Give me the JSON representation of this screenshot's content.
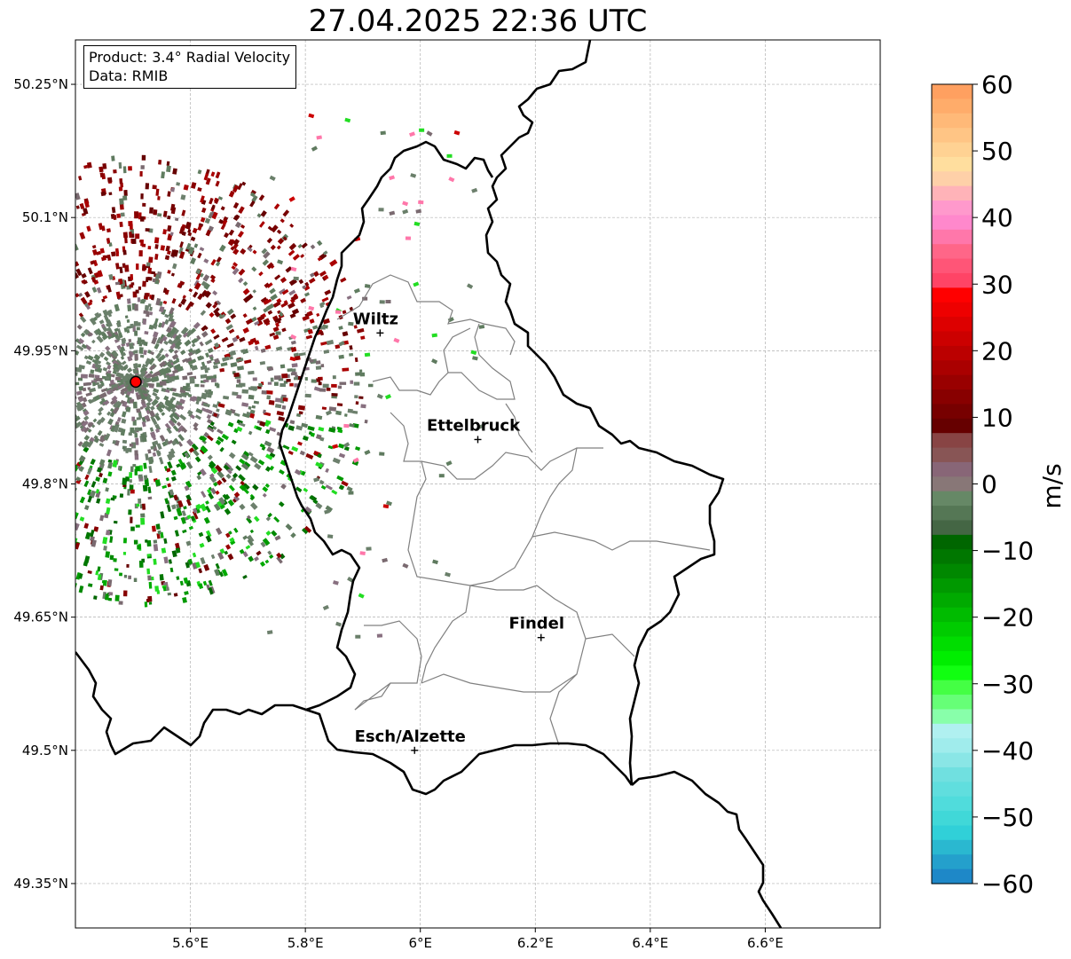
{
  "title": "27.04.2025 22:36 UTC",
  "info_box": {
    "product": "Product: 3.4° Radial Velocity",
    "data_source": "Data: RMIB"
  },
  "axes": {
    "lon_ticks": [
      "5.6°E",
      "5.8°E",
      "6°E",
      "6.2°E",
      "6.4°E",
      "6.6°E"
    ],
    "lat_ticks": [
      "50.25°N",
      "50.1°N",
      "49.95°N",
      "49.8°N",
      "49.65°N",
      "49.5°N",
      "49.35°N"
    ],
    "lon_range": [
      5.4,
      6.8
    ],
    "lat_range": [
      49.3,
      50.3
    ],
    "grid": true
  },
  "cities": [
    {
      "name": "Wiltz",
      "lon": 5.93,
      "lat": 49.97
    },
    {
      "name": "Ettelbruck",
      "lon": 6.1,
      "lat": 49.85
    },
    {
      "name": "Findel",
      "lon": 6.21,
      "lat": 49.627
    },
    {
      "name": "Esch/Alzette",
      "lon": 5.99,
      "lat": 49.5
    }
  ],
  "radar_site": {
    "lon": 5.505,
    "lat": 49.915,
    "color": "#ff0000"
  },
  "colorbar": {
    "label": "m/s",
    "min": -60,
    "max": 60,
    "tick_labels": [
      "60",
      "50",
      "40",
      "30",
      "20",
      "10",
      "0",
      "−10",
      "−20",
      "−30",
      "−40",
      "−50",
      "−60"
    ],
    "tick_values": [
      60,
      50,
      40,
      30,
      20,
      10,
      0,
      -10,
      -20,
      -30,
      -40,
      -50,
      -60
    ],
    "colors": [
      "#ffa060",
      "#ffac6a",
      "#ffb978",
      "#ffc585",
      "#ffd293",
      "#ffde9e",
      "#fed0a8",
      "#ffb3b8",
      "#ff99cc",
      "#ff88cc",
      "#ff77aa",
      "#ff6688",
      "#ff5577",
      "#ff4466",
      "#ff0000",
      "#ee0000",
      "#dd0000",
      "#cc0000",
      "#bb0000",
      "#aa0000",
      "#990000",
      "#880000",
      "#770000",
      "#660000",
      "#884444",
      "#885555",
      "#886677",
      "#887777",
      "#668866",
      "#557755",
      "#446644",
      "#006600",
      "#007700",
      "#008800",
      "#009900",
      "#00aa00",
      "#00bb00",
      "#00cc00",
      "#00dd00",
      "#00ee00",
      "#11ff11",
      "#44ff44",
      "#66ff77",
      "#88ffaa",
      "#b0f0f0",
      "#a0ecec",
      "#8ae6e6",
      "#70e0e0",
      "#60dede",
      "#50dcdc",
      "#40d8d8",
      "#30d0d8",
      "#2ab8d0",
      "#24a0cc",
      "#1e88c8"
    ]
  }
}
